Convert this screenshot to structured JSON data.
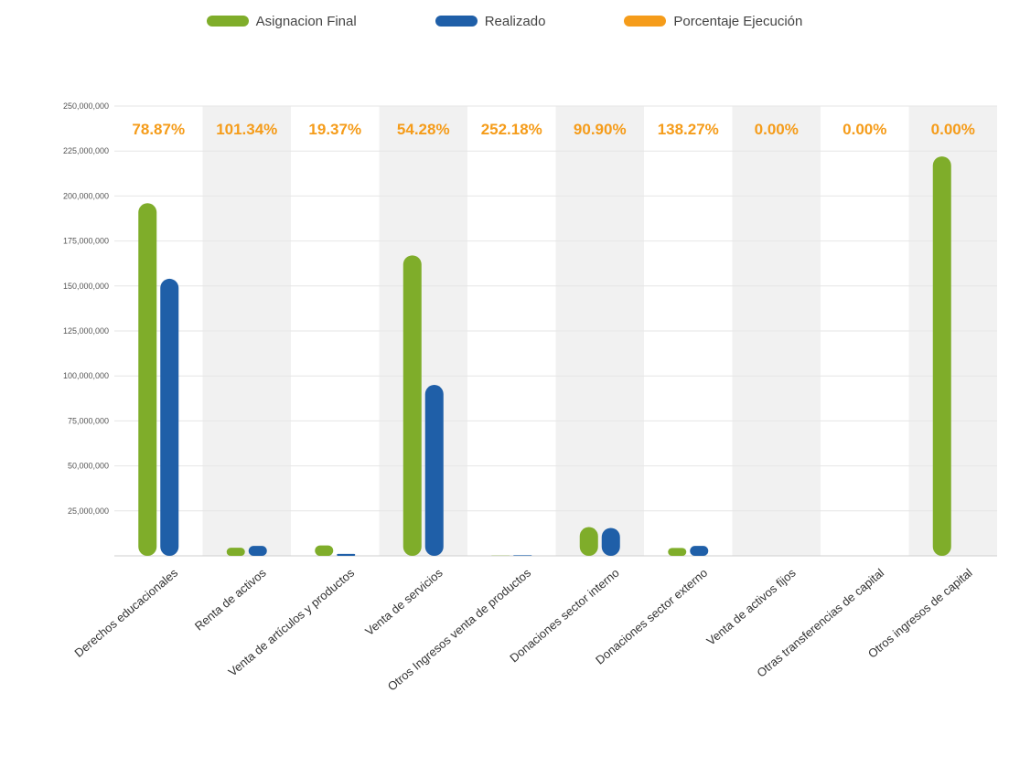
{
  "legend": [
    {
      "label": "Asignacion Final",
      "color": "#7fad2a"
    },
    {
      "label": "Realizado",
      "color": "#1f5fa8"
    },
    {
      "label": "Porcentaje Ejecución",
      "color": "#f59c1a"
    }
  ],
  "chart_data": {
    "type": "bar",
    "categories": [
      "Derechos educacionales",
      "Renta de activos",
      "Venta de artículos y productos",
      "Venta de servicios",
      "Otros Ingresos venta de productos",
      "Donaciones sector interno",
      "Donaciones sector externo",
      "Venta de activos fijos",
      "Otras transferencias de capital",
      "Otros ingresos de capital"
    ],
    "series": [
      {
        "name": "Asignacion Final",
        "color": "#7fad2a",
        "values": [
          196000000,
          4500000,
          5800000,
          167000000,
          150000,
          16000000,
          4400000,
          0,
          0,
          222000000
        ]
      },
      {
        "name": "Realizado",
        "color": "#1f5fa8",
        "values": [
          154000000,
          5500000,
          1100000,
          95000000,
          300000,
          15500000,
          5500000,
          0,
          0,
          0
        ]
      }
    ],
    "percent_labels": [
      "78.87%",
      "101.34%",
      "19.37%",
      "54.28%",
      "252.18%",
      "90.90%",
      "138.27%",
      "0.00%",
      "0.00%",
      "0.00%"
    ],
    "percent_series_name": "Porcentaje Ejecución",
    "percent_color": "#f59c1a",
    "yticks": [
      "25,000,000",
      "50,000,000",
      "75,000,000",
      "100,000,000",
      "125,000,000",
      "150,000,000",
      "175,000,000",
      "200,000,000",
      "225,000,000",
      "250,000,000"
    ],
    "ylim": [
      0,
      250000000
    ],
    "grid": true,
    "legend_position": "top"
  }
}
